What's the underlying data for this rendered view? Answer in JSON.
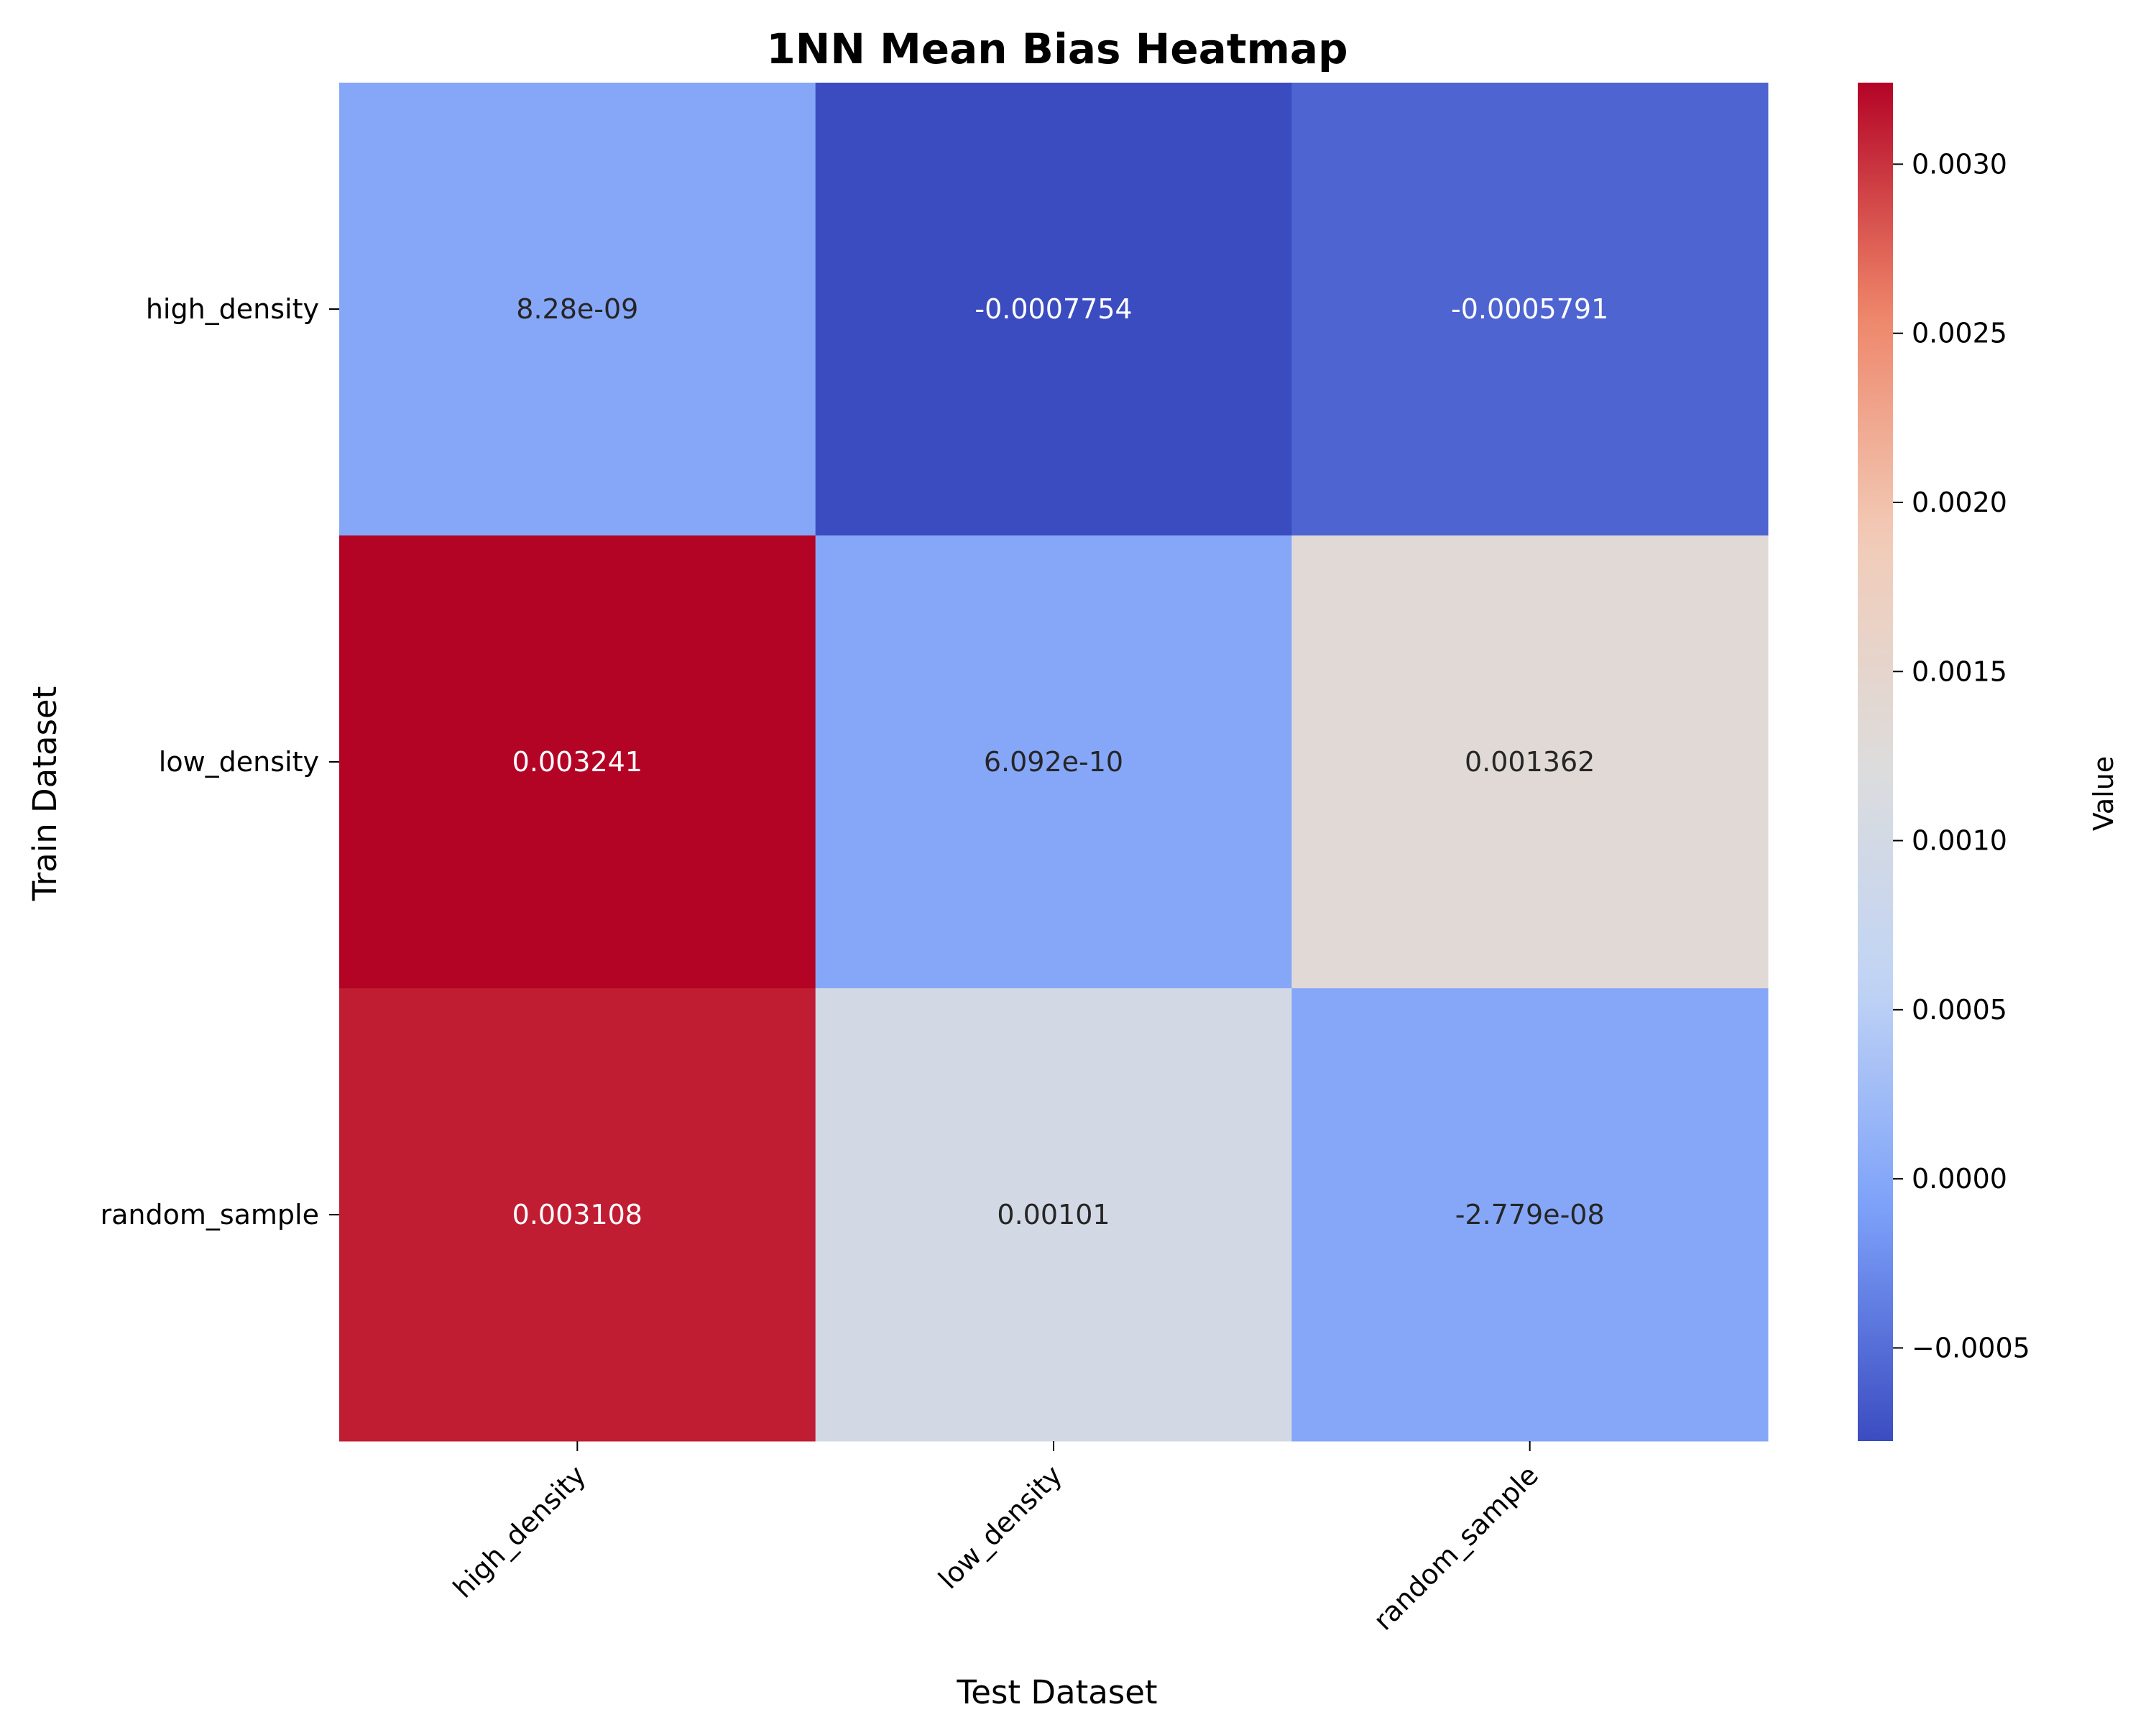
{
  "chart_data": {
    "type": "heatmap",
    "title": "1NN Mean Bias Heatmap",
    "xlabel": "Test Dataset",
    "ylabel": "Train Dataset",
    "x_categories": [
      "high_density",
      "low_density",
      "random_sample"
    ],
    "y_categories": [
      "high_density",
      "low_density",
      "random_sample"
    ],
    "values": [
      [
        8.28e-09,
        -0.0007754,
        -0.0005791
      ],
      [
        0.003241,
        6.092e-10,
        0.001362
      ],
      [
        0.003108,
        0.00101,
        -2.779e-08
      ]
    ],
    "cell_labels": [
      [
        "8.28e-09",
        "-0.0007754",
        "-0.0005791"
      ],
      [
        "0.003241",
        "6.092e-10",
        "0.001362"
      ],
      [
        "0.003108",
        "0.00101",
        "-2.779e-08"
      ]
    ],
    "colormap": "coolwarm",
    "colorbar": {
      "label": "Value",
      "range": [
        -0.0007754,
        0.003241
      ],
      "ticks": [
        -0.0005,
        0.0,
        0.0005,
        0.001,
        0.0015,
        0.002,
        0.0025,
        0.003
      ],
      "tick_labels": [
        "−0.0005",
        "0.0000",
        "0.0005",
        "0.0010",
        "0.0015",
        "0.0020",
        "0.0025",
        "0.0030"
      ]
    },
    "colors": {
      "cmap_stops": [
        "#3b4cc0",
        "#7b9ff9",
        "#c0d4f5",
        "#dddcdc",
        "#f2cbb7",
        "#ee8468",
        "#b40426"
      ]
    }
  }
}
